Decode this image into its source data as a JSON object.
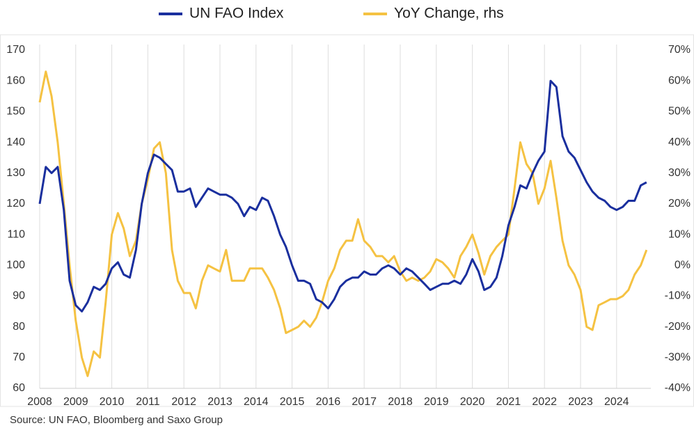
{
  "chart_data": {
    "type": "line",
    "source": "Source:  UN FAO, Bloomberg and Saxo Group",
    "x": [
      2008,
      2008.17,
      2008.33,
      2008.5,
      2008.67,
      2008.83,
      2009,
      2009.17,
      2009.33,
      2009.5,
      2009.67,
      2009.83,
      2010,
      2010.17,
      2010.33,
      2010.5,
      2010.67,
      2010.83,
      2011,
      2011.17,
      2011.33,
      2011.5,
      2011.67,
      2011.83,
      2012,
      2012.17,
      2012.33,
      2012.5,
      2012.67,
      2012.83,
      2013,
      2013.17,
      2013.33,
      2013.5,
      2013.67,
      2013.83,
      2014,
      2014.17,
      2014.33,
      2014.5,
      2014.67,
      2014.83,
      2015,
      2015.17,
      2015.33,
      2015.5,
      2015.67,
      2015.83,
      2016,
      2016.17,
      2016.33,
      2016.5,
      2016.67,
      2016.83,
      2017,
      2017.17,
      2017.33,
      2017.5,
      2017.67,
      2017.83,
      2018,
      2018.17,
      2018.33,
      2018.5,
      2018.67,
      2018.83,
      2019,
      2019.17,
      2019.33,
      2019.5,
      2019.67,
      2019.83,
      2020,
      2020.17,
      2020.33,
      2020.5,
      2020.67,
      2020.83,
      2021,
      2021.17,
      2021.33,
      2021.5,
      2021.67,
      2021.83,
      2022,
      2022.17,
      2022.33,
      2022.5,
      2022.67,
      2022.83,
      2023,
      2023.17,
      2023.33,
      2023.5,
      2023.67,
      2023.83,
      2024,
      2024.17,
      2024.33,
      2024.5,
      2024.67,
      2024.83
    ],
    "series": [
      {
        "name": "UN FAO Index",
        "color": "#1a2f9e",
        "values": [
          120,
          132,
          130,
          132,
          118,
          95,
          87,
          85,
          88,
          93,
          92,
          94,
          99,
          101,
          97,
          96,
          105,
          120,
          130,
          136,
          135,
          133,
          131,
          124,
          124,
          125,
          119,
          122,
          125,
          124,
          123,
          123,
          122,
          120,
          116,
          119,
          118,
          122,
          121,
          116,
          110,
          106,
          100,
          95,
          95,
          94,
          89,
          88,
          86,
          89,
          93,
          95,
          96,
          96,
          98,
          97,
          97,
          99,
          100,
          99,
          97,
          99,
          98,
          96,
          94,
          92,
          93,
          94,
          94,
          95,
          94,
          97,
          102,
          98,
          92,
          93,
          96,
          103,
          113,
          119,
          126,
          125,
          130,
          134,
          137,
          160,
          158,
          142,
          137,
          135,
          131,
          127,
          124,
          122,
          121,
          119,
          118,
          119,
          121,
          121,
          126,
          127
        ]
      },
      {
        "name": "YoY Change, rhs",
        "color": "#f5c242",
        "axis": "y2",
        "values": [
          53,
          63,
          55,
          40,
          20,
          0,
          -18,
          -30,
          -36,
          -28,
          -30,
          -12,
          10,
          17,
          12,
          3,
          8,
          20,
          28,
          38,
          40,
          30,
          5,
          -5,
          -9,
          -9,
          -14,
          -5,
          0,
          -1,
          -2,
          5,
          -5,
          -5,
          -5,
          -1,
          -1,
          -1,
          -4,
          -8,
          -14,
          -22,
          -21,
          -20,
          -18,
          -20,
          -17,
          -12,
          -5,
          -1,
          5,
          8,
          8,
          15,
          8,
          6,
          3,
          3,
          1,
          3,
          -2,
          -5,
          -4,
          -5,
          -4,
          -2,
          2,
          1,
          -1,
          -4,
          3,
          6,
          10,
          4,
          -3,
          3,
          6,
          8,
          10,
          25,
          40,
          33,
          30,
          20,
          25,
          34,
          22,
          8,
          0,
          -3,
          -8,
          -20,
          -21,
          -13,
          -12,
          -11,
          -11,
          -10,
          -8,
          -3,
          0,
          5
        ]
      }
    ],
    "xlim": [
      2008,
      2024.95
    ],
    "xticks": [
      2008,
      2009,
      2010,
      2011,
      2012,
      2013,
      2014,
      2015,
      2016,
      2017,
      2018,
      2019,
      2020,
      2021,
      2022,
      2023,
      2024
    ],
    "ylim": [
      60,
      170
    ],
    "yticks": [
      60,
      70,
      80,
      90,
      100,
      110,
      120,
      130,
      140,
      150,
      160,
      170
    ],
    "y2lim": [
      -40,
      70
    ],
    "y2ticks": [
      {
        "value": -40,
        "label": "-40%"
      },
      {
        "value": -30,
        "label": "-30%"
      },
      {
        "value": -20,
        "label": "-20%"
      },
      {
        "value": -10,
        "label": "-10%"
      },
      {
        "value": 0,
        "label": "0%"
      },
      {
        "value": 10,
        "label": "10%"
      },
      {
        "value": 20,
        "label": "20%"
      },
      {
        "value": 30,
        "label": "30%"
      },
      {
        "value": 40,
        "label": "40%"
      },
      {
        "value": 50,
        "label": "50%"
      },
      {
        "value": 60,
        "label": "60%"
      },
      {
        "value": 70,
        "label": "70%"
      }
    ],
    "grid": true
  }
}
